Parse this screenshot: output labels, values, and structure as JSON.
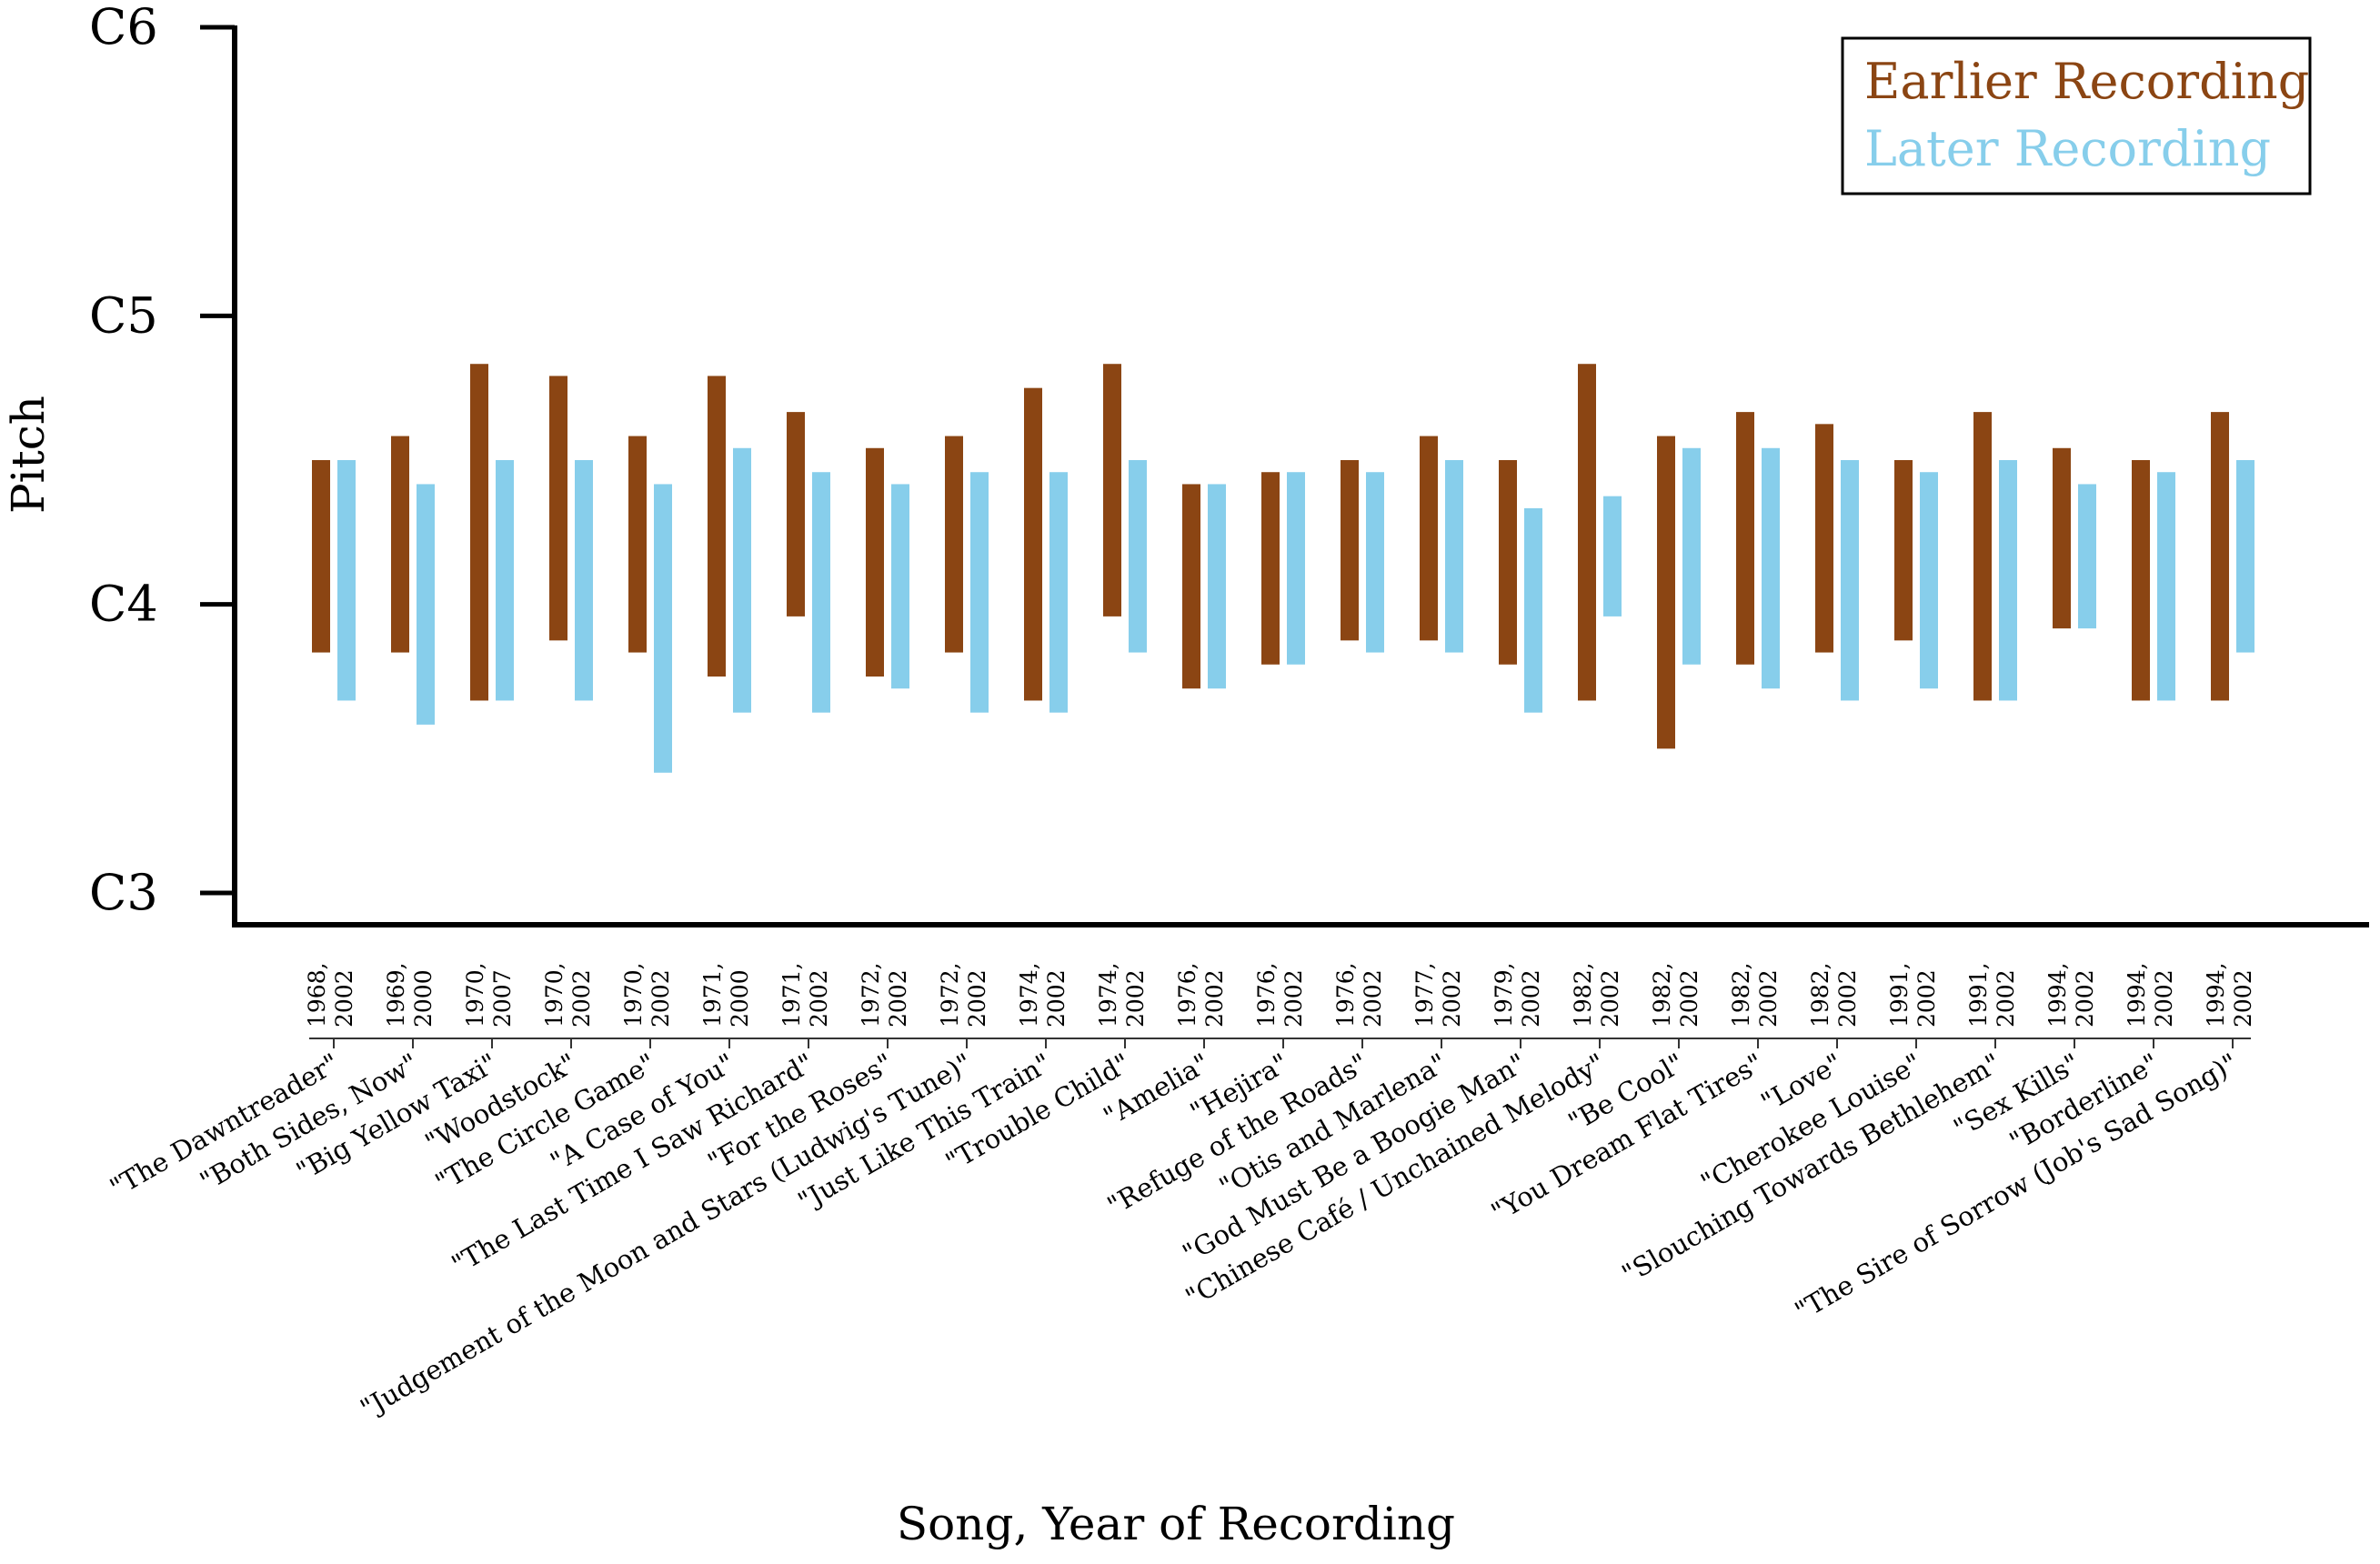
{
  "chart_data": {
    "type": "bar",
    "subtype": "floating-range",
    "ylabel": "Pitch",
    "xlabel": "Song, Year of Recording",
    "yticks": [
      "C3",
      "C4",
      "C5",
      "C6"
    ],
    "ylim": [
      0,
      36
    ],
    "y_unit": "semitones above C3",
    "grid": false,
    "legend_position": "top-right",
    "series": [
      {
        "name": "Earlier Recording",
        "color": "#8B4513"
      },
      {
        "name": "Later Recording",
        "color": "#87CEEB"
      }
    ],
    "categories": [
      {
        "song": "\"The Dawntreader\"",
        "years": [
          "1968,",
          "2002"
        ],
        "earlier": [
          10,
          18
        ],
        "later": [
          8,
          18
        ]
      },
      {
        "song": "\"Both Sides, Now\"",
        "years": [
          "1969,",
          "2000"
        ],
        "earlier": [
          10,
          19
        ],
        "later": [
          7,
          17
        ]
      },
      {
        "song": "\"Big Yellow Taxi\"",
        "years": [
          "1970,",
          "2007"
        ],
        "earlier": [
          8,
          22
        ],
        "later": [
          8,
          18
        ]
      },
      {
        "song": "\"Woodstock\"",
        "years": [
          "1970,",
          "2002"
        ],
        "earlier": [
          10.5,
          21.5
        ],
        "later": [
          8,
          18
        ]
      },
      {
        "song": "\"The Circle Game\"",
        "years": [
          "1970,",
          "2002"
        ],
        "earlier": [
          10,
          19
        ],
        "later": [
          5,
          17
        ]
      },
      {
        "song": "\"A Case of You\"",
        "years": [
          "1971,",
          "2000"
        ],
        "earlier": [
          9,
          21.5
        ],
        "later": [
          7.5,
          18.5
        ]
      },
      {
        "song": "\"The Last Time I Saw Richard\"",
        "years": [
          "1971,",
          "2002"
        ],
        "earlier": [
          11.5,
          20
        ],
        "later": [
          7.5,
          17.5
        ]
      },
      {
        "song": "\"For the Roses\"",
        "years": [
          "1972,",
          "2002"
        ],
        "earlier": [
          9,
          18.5
        ],
        "later": [
          8.5,
          17
        ]
      },
      {
        "song": "\"Judgement of the Moon and Stars (Ludwig's Tune)\"",
        "years": [
          "1972,",
          "2002"
        ],
        "earlier": [
          10,
          19
        ],
        "later": [
          7.5,
          17.5
        ]
      },
      {
        "song": "\"Just Like This Train\"",
        "years": [
          "1974,",
          "2002"
        ],
        "earlier": [
          8,
          21
        ],
        "later": [
          7.5,
          17.5
        ]
      },
      {
        "song": "\"Trouble Child\"",
        "years": [
          "1974,",
          "2002"
        ],
        "earlier": [
          11.5,
          22
        ],
        "later": [
          10,
          18
        ]
      },
      {
        "song": "\"Amelia\"",
        "years": [
          "1976,",
          "2002"
        ],
        "earlier": [
          8.5,
          17
        ],
        "later": [
          8.5,
          17
        ]
      },
      {
        "song": "\"Hejira\"",
        "years": [
          "1976,",
          "2002"
        ],
        "earlier": [
          9.5,
          17.5
        ],
        "later": [
          9.5,
          17.5
        ]
      },
      {
        "song": "\"Refuge of the Roads\"",
        "years": [
          "1976,",
          "2002"
        ],
        "earlier": [
          10.5,
          18
        ],
        "later": [
          10,
          17.5
        ]
      },
      {
        "song": "\"Otis and Marlena\"",
        "years": [
          "1977,",
          "2002"
        ],
        "earlier": [
          10.5,
          19
        ],
        "later": [
          10,
          18
        ]
      },
      {
        "song": "\"God Must Be a Boogie Man\"",
        "years": [
          "1979,",
          "2002"
        ],
        "earlier": [
          9.5,
          18
        ],
        "later": [
          7.5,
          16
        ]
      },
      {
        "song": "\"Chinese Café / Unchained Melody\"",
        "years": [
          "1982,",
          "2002"
        ],
        "earlier": [
          8,
          22
        ],
        "later": [
          11.5,
          16.5
        ]
      },
      {
        "song": "\"Be Cool\"",
        "years": [
          "1982,",
          "2002"
        ],
        "earlier": [
          6,
          19
        ],
        "later": [
          9.5,
          18.5
        ]
      },
      {
        "song": "\"You Dream Flat Tires\"",
        "years": [
          "1982,",
          "2002"
        ],
        "earlier": [
          9.5,
          20
        ],
        "later": [
          8.5,
          18.5
        ]
      },
      {
        "song": "\"Love\"",
        "years": [
          "1982,",
          "2002"
        ],
        "earlier": [
          10,
          19.5
        ],
        "later": [
          8,
          18
        ]
      },
      {
        "song": "\"Cherokee Louise\"",
        "years": [
          "1991,",
          "2002"
        ],
        "earlier": [
          10.5,
          18
        ],
        "later": [
          8.5,
          17.5
        ]
      },
      {
        "song": "\"Slouching Towards Bethlehem\"",
        "years": [
          "1991,",
          "2002"
        ],
        "earlier": [
          8,
          20
        ],
        "later": [
          8,
          18
        ]
      },
      {
        "song": "\"Sex Kills\"",
        "years": [
          "1994,",
          "2002"
        ],
        "earlier": [
          11,
          18.5
        ],
        "later": [
          11,
          17
        ]
      },
      {
        "song": "\"Borderline\"",
        "years": [
          "1994,",
          "2002"
        ],
        "earlier": [
          8,
          18
        ],
        "later": [
          8,
          17.5
        ]
      },
      {
        "song": "\"The Sire of Sorrow (Job's Sad Song)\"",
        "years": [
          "1994,",
          "2002"
        ],
        "earlier": [
          8,
          20
        ],
        "later": [
          10,
          18
        ]
      }
    ]
  }
}
